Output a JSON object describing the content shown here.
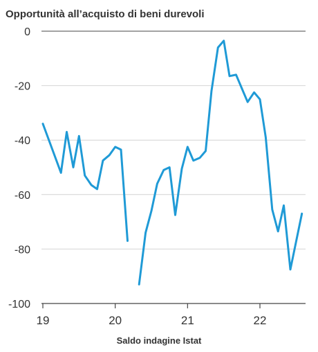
{
  "chart_data": {
    "type": "line",
    "title": "Opportunità all’acquisto di beni durevoli",
    "xlabel": "Saldo indagine Istat",
    "ylabel": "",
    "ylim": [
      -100,
      0
    ],
    "yticks": [
      0,
      -20,
      -40,
      -60,
      -80,
      -100
    ],
    "xlim": [
      19,
      22.7
    ],
    "xticks": [
      {
        "value": 19,
        "label": "19"
      },
      {
        "value": 20,
        "label": "20"
      },
      {
        "value": 21,
        "label": "21"
      },
      {
        "value": 22,
        "label": "22"
      }
    ],
    "grid": true,
    "color": "#1f9ad6",
    "series": [
      {
        "segments": [
          [
            [
              19.0,
              -34
            ],
            [
              19.25,
              -52
            ],
            [
              19.33,
              -37
            ],
            [
              19.42,
              -50
            ],
            [
              19.5,
              -38.5
            ],
            [
              19.58,
              -53
            ],
            [
              19.67,
              -56.5
            ],
            [
              19.75,
              -58
            ],
            [
              19.83,
              -47.5
            ],
            [
              19.92,
              -45.5
            ],
            [
              20.0,
              -42.5
            ],
            [
              20.08,
              -43.5
            ],
            [
              20.17,
              -77
            ]
          ],
          [
            [
              20.33,
              -93
            ],
            [
              20.42,
              -74
            ],
            [
              20.5,
              -66
            ],
            [
              20.58,
              -56
            ],
            [
              20.67,
              -51
            ],
            [
              20.75,
              -50
            ],
            [
              20.83,
              -67.5
            ],
            [
              20.92,
              -50.5
            ],
            [
              21.0,
              -42.5
            ],
            [
              21.08,
              -47.5
            ],
            [
              21.17,
              -46.5
            ],
            [
              21.25,
              -44
            ],
            [
              21.33,
              -22
            ],
            [
              21.42,
              -6
            ],
            [
              21.5,
              -3.5
            ],
            [
              21.58,
              -16.5
            ],
            [
              21.67,
              -16
            ],
            [
              21.75,
              -21
            ],
            [
              21.83,
              -26
            ],
            [
              21.92,
              -22.5
            ],
            [
              22.0,
              -25
            ],
            [
              22.08,
              -39
            ],
            [
              22.17,
              -65.5
            ],
            [
              22.25,
              -73.5
            ],
            [
              22.33,
              -64
            ],
            [
              22.42,
              -87.5
            ],
            [
              22.58,
              -67
            ]
          ]
        ]
      }
    ]
  }
}
